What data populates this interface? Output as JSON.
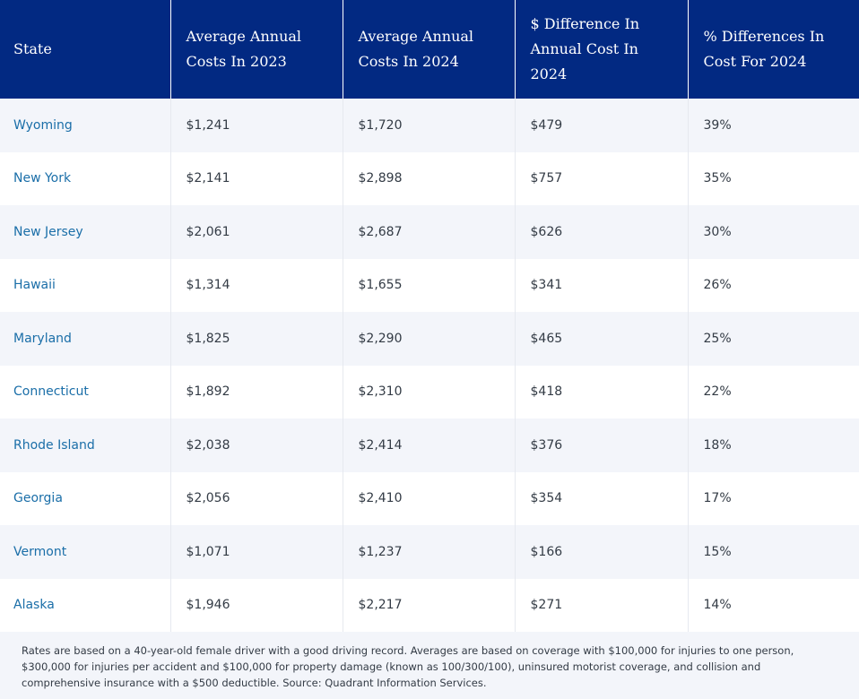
{
  "table": {
    "headers": [
      "State",
      "Average Annual Costs In 2023",
      "Average Annual Costs In 2024",
      "$ Difference In Annual Cost In 2024",
      "% Differences In Cost For 2024"
    ],
    "rows": [
      [
        "Wyoming",
        "$1,241",
        "$1,720",
        "$479",
        "39%"
      ],
      [
        "New York",
        "$2,141",
        "$2,898",
        "$757",
        "35%"
      ],
      [
        "New Jersey",
        "$2,061",
        "$2,687",
        "$626",
        "30%"
      ],
      [
        "Hawaii",
        "$1,314",
        "$1,655",
        "$341",
        "26%"
      ],
      [
        "Maryland",
        "$1,825",
        "$2,290",
        "$465",
        "25%"
      ],
      [
        "Connecticut",
        "$1,892",
        "$2,310",
        "$418",
        "22%"
      ],
      [
        "Rhode Island",
        "$2,038",
        "$2,414",
        "$376",
        "18%"
      ],
      [
        "Georgia",
        "$2,056",
        "$2,410",
        "$354",
        "17%"
      ],
      [
        "Vermont",
        "$1,071",
        "$1,237",
        "$166",
        "15%"
      ],
      [
        "Alaska",
        "$1,946",
        "$2,217",
        "$271",
        "14%"
      ]
    ]
  },
  "footnote": "Rates are based on a 40-year-old female driver with a good driving record. Averages are based on coverage with $100,000 for injuries to one person, $300,000 for injuries per accident and $100,000 for property damage (known as 100/300/100), uninsured motorist coverage, and collision and comprehensive insurance with a $500 deductible. Source: Quadrant Information Services.",
  "colors": {
    "header_bg": "#022982",
    "header_text": "#ffffff",
    "state_link": "#1a6ea8",
    "row_alt_bg": "#f3f5fa"
  }
}
